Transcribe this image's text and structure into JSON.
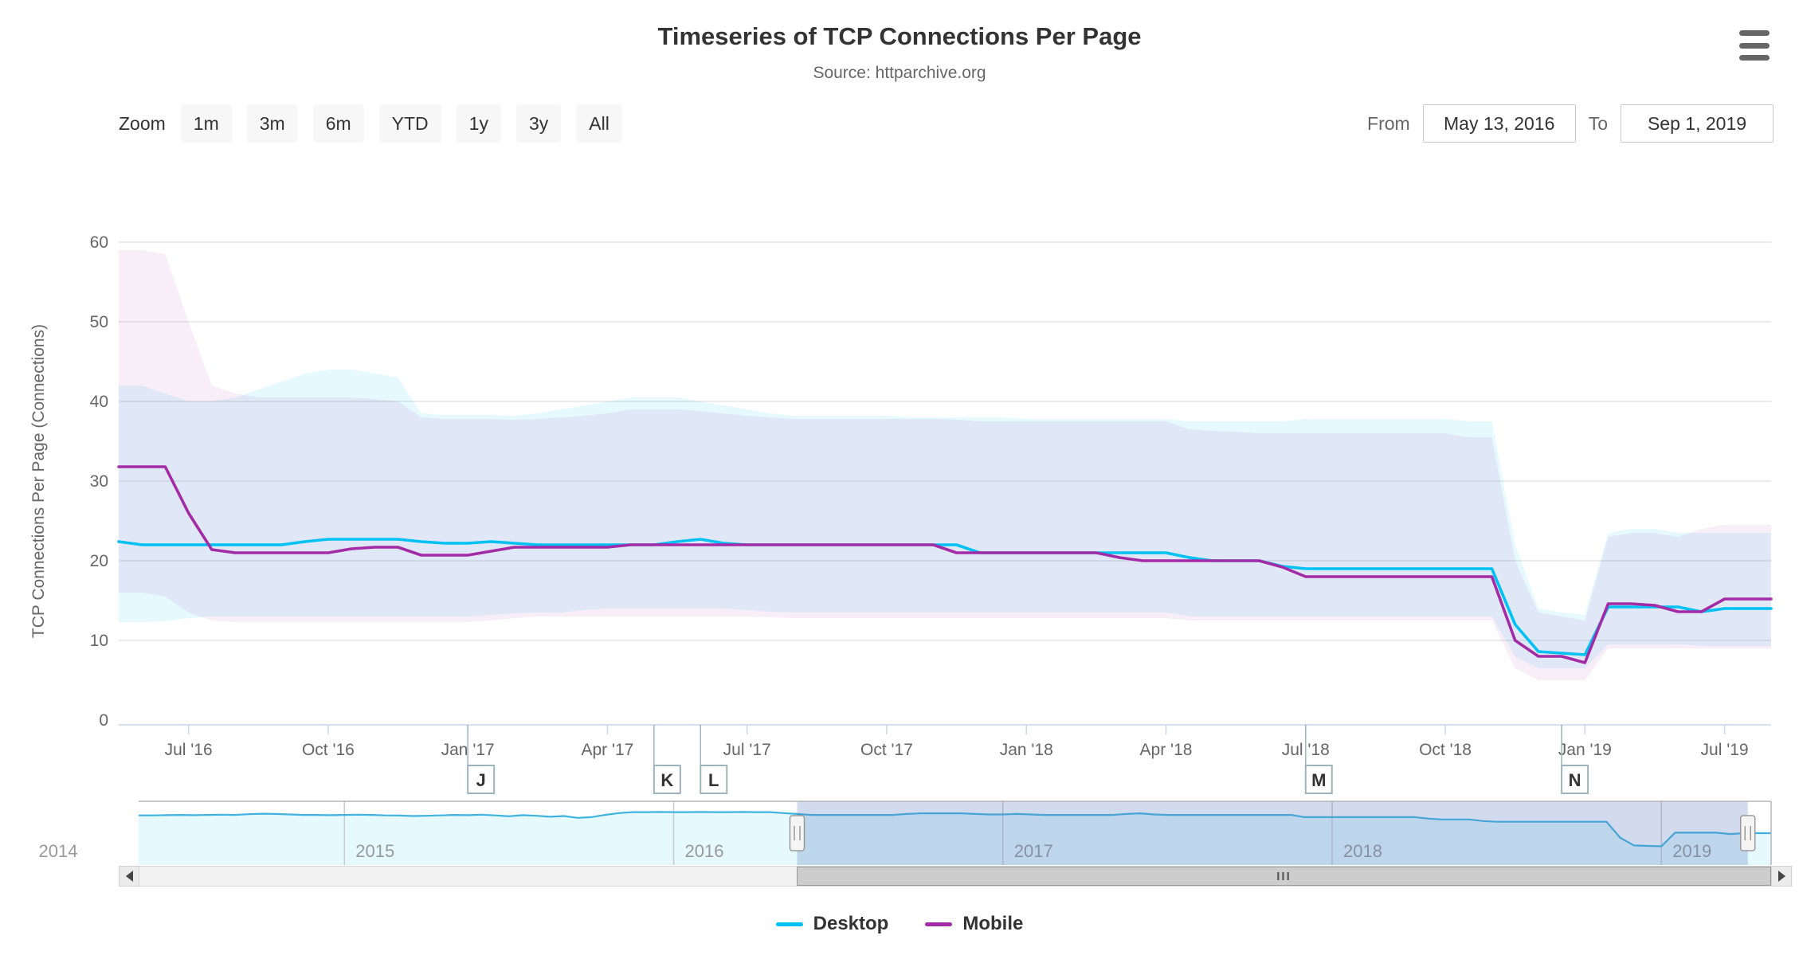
{
  "header": {
    "title": "Timeseries of TCP Connections Per Page",
    "subtitle": "Source: httparchive.org"
  },
  "controls": {
    "zoom_label": "Zoom",
    "buttons": [
      "1m",
      "3m",
      "6m",
      "YTD",
      "1y",
      "3y",
      "All"
    ],
    "from_label": "From",
    "from_value": "May 13, 2016",
    "to_label": "To",
    "to_value": "Sep 1, 2019"
  },
  "legend": [
    {
      "label": "Desktop",
      "color": "#00c1f4"
    },
    {
      "label": "Mobile",
      "color": "#a42ba6"
    }
  ],
  "scrollbar": {
    "grip": "III"
  },
  "chart_data": {
    "type": "line",
    "title": "Timeseries of TCP Connections Per Page",
    "subtitle": "Source: httparchive.org",
    "ylabel": "TCP Connections Per Page (Connections)",
    "ylim": [
      0,
      60
    ],
    "yticks": [
      0,
      10,
      20,
      30,
      40,
      50,
      60
    ],
    "x_start": "2016-05-15",
    "x_end": "2019-09-01",
    "x_note": "72 crawl points: semi-monthly May 2016 - Dec 2018 (indices 0-62), monthly Jan-Sep 2019 (63-71); ordinal spacing",
    "x_tick_labels": [
      {
        "index": 3,
        "label": "Jul '16"
      },
      {
        "index": 9,
        "label": "Oct '16"
      },
      {
        "index": 15,
        "label": "Jan '17"
      },
      {
        "index": 21,
        "label": "Apr '17"
      },
      {
        "index": 27,
        "label": "Jul '17"
      },
      {
        "index": 33,
        "label": "Oct '17"
      },
      {
        "index": 39,
        "label": "Jan '18"
      },
      {
        "index": 45,
        "label": "Apr '18"
      },
      {
        "index": 51,
        "label": "Jul '18"
      },
      {
        "index": 57,
        "label": "Oct '18"
      },
      {
        "index": 63,
        "label": "Jan '19"
      },
      {
        "index": 69,
        "label": "Jul '19"
      }
    ],
    "series": [
      {
        "name": "Desktop",
        "color": "#00c1f4",
        "values": [
          22.4,
          22,
          22,
          22,
          22,
          22,
          22,
          22,
          22.4,
          22.7,
          22.7,
          22.7,
          22.7,
          22.4,
          22.2,
          22.2,
          22.4,
          22.2,
          22,
          22,
          22,
          22,
          22,
          22,
          22.4,
          22.7,
          22.2,
          22,
          22,
          22,
          22,
          22,
          22,
          22,
          22,
          22,
          22,
          21,
          21,
          21,
          21,
          21,
          21,
          21,
          21,
          21,
          20.4,
          20,
          20,
          20,
          19.3,
          19,
          19,
          19,
          19,
          19,
          19,
          19,
          19,
          19,
          12,
          8.6,
          8.4,
          8.2,
          14.2,
          14.2,
          14.2,
          14.2,
          13.6,
          14,
          14,
          14
        ]
      },
      {
        "name": "Mobile",
        "color": "#a42ba6",
        "values": [
          31.8,
          31.8,
          31.8,
          26,
          21.4,
          21,
          21,
          21,
          21,
          21,
          21.5,
          21.7,
          21.7,
          20.7,
          20.7,
          20.7,
          21.2,
          21.7,
          21.7,
          21.7,
          21.7,
          21.7,
          22,
          22,
          22,
          22,
          22,
          22,
          22,
          22,
          22,
          22,
          22,
          22,
          22,
          22,
          21,
          21,
          21,
          21,
          21,
          21,
          21,
          20.4,
          20,
          20,
          20,
          20,
          20,
          20,
          19.2,
          18,
          18,
          18,
          18,
          18,
          18,
          18,
          18,
          18,
          10,
          8,
          8,
          7.2,
          14.6,
          14.6,
          14.4,
          13.6,
          13.6,
          15.2,
          15.2,
          15.2
        ]
      }
    ],
    "ranges": [
      {
        "name": "Desktop range",
        "color": "rgba(0,193,244,0.10)",
        "low": [
          12.3,
          12.3,
          12.4,
          12.8,
          13,
          13,
          13,
          13,
          13,
          13,
          13,
          13,
          13,
          13,
          13,
          13,
          13.2,
          13.4,
          13.5,
          13.5,
          13.8,
          14,
          14,
          14,
          14,
          14,
          14,
          13.8,
          13.6,
          13.5,
          13.5,
          13.5,
          13.5,
          13.5,
          13.5,
          13.5,
          13.5,
          13.5,
          13.5,
          13.5,
          13.5,
          13.5,
          13.5,
          13.5,
          13.5,
          13.5,
          13,
          13,
          13,
          13,
          13,
          13,
          13,
          13,
          13,
          13,
          13,
          13,
          13,
          13,
          8,
          6.5,
          6.5,
          6.5,
          9.5,
          9.5,
          9.5,
          9.5,
          9.3,
          9.3,
          9.3,
          9.3
        ],
        "high": [
          42,
          42,
          41,
          40,
          40,
          40.5,
          41.5,
          42.5,
          43.5,
          44,
          44,
          43.5,
          43,
          38.5,
          38.3,
          38.3,
          38.3,
          38.2,
          38.5,
          39,
          39.5,
          40,
          40.5,
          40.5,
          40.5,
          40,
          39.5,
          39,
          38.5,
          38.2,
          38.2,
          38.2,
          38.2,
          38.2,
          38,
          38,
          38,
          38,
          38,
          37.8,
          37.8,
          37.8,
          37.8,
          37.8,
          37.8,
          37.8,
          37.5,
          37.5,
          37.5,
          37.5,
          37.5,
          37.8,
          37.8,
          37.8,
          37.8,
          37.8,
          37.8,
          37.8,
          37.5,
          37.5,
          22,
          14,
          13.5,
          13.2,
          23.5,
          24,
          24,
          23.5,
          23.5,
          23.5,
          23.5,
          23.5
        ]
      },
      {
        "name": "Mobile range",
        "color": "rgba(164,43,166,0.08)",
        "low": [
          16,
          16,
          15.5,
          13.5,
          12.5,
          12.3,
          12.3,
          12.3,
          12.3,
          12.3,
          12.3,
          12.3,
          12.3,
          12.3,
          12.3,
          12.3,
          12.5,
          12.8,
          13,
          13,
          13,
          13,
          13,
          13,
          13,
          13,
          13,
          13,
          12.9,
          12.8,
          12.8,
          12.8,
          12.8,
          12.8,
          12.8,
          12.8,
          12.8,
          12.8,
          12.8,
          12.8,
          12.8,
          12.8,
          12.8,
          12.8,
          12.8,
          12.8,
          12.5,
          12.5,
          12.5,
          12.5,
          12.5,
          12.5,
          12.5,
          12.5,
          12.5,
          12.5,
          12.5,
          12.5,
          12.5,
          12.5,
          6.5,
          5,
          5,
          5,
          9,
          9,
          9,
          9,
          9,
          9,
          9,
          9
        ],
        "high": [
          59,
          59,
          58.5,
          50,
          42,
          41,
          40.5,
          40.5,
          40.5,
          40.5,
          40.5,
          40.3,
          40,
          38,
          37.8,
          37.8,
          37.8,
          37.7,
          37.8,
          38,
          38.2,
          38.5,
          39,
          39,
          39,
          38.8,
          38.5,
          38.2,
          38,
          37.8,
          37.8,
          37.8,
          37.8,
          37.8,
          37.8,
          37.8,
          37.7,
          37.5,
          37.5,
          37.5,
          37.5,
          37.5,
          37.5,
          37.5,
          37.5,
          37.5,
          36.5,
          36.3,
          36.2,
          36,
          36,
          36,
          36,
          36,
          36,
          36,
          36,
          36,
          35.5,
          35.5,
          20,
          13.5,
          13,
          12.5,
          23,
          23.5,
          23.5,
          23,
          24,
          24.5,
          24.5,
          24.5
        ]
      }
    ],
    "flags": [
      {
        "label": "J",
        "index": 15
      },
      {
        "label": "K",
        "index": 23
      },
      {
        "label": "L",
        "index": 25
      },
      {
        "label": "M",
        "index": 51
      },
      {
        "label": "N",
        "index": 62
      }
    ],
    "navigator": {
      "note": "navigator spans May 2014 - Sep 2019; pre_values are semi-monthly desktop values May 2014 - May 2016, followed by the Desktop series above",
      "pre_values": [
        21.8,
        21.8,
        21.9,
        22,
        21.9,
        22,
        22.1,
        22,
        22.3,
        22.5,
        22.4,
        22.2,
        22,
        22,
        21.9,
        22,
        22.1,
        22,
        21.8,
        21.7,
        21.5,
        21.6,
        21.8,
        22,
        21.9,
        22.1,
        21.8,
        21.4,
        21.9,
        21.6,
        21.2,
        21.5,
        20.7,
        21,
        22,
        22.8,
        23.2,
        23.2,
        23.3,
        23.2,
        23.2,
        23.3,
        23.2,
        23.2,
        23.3,
        23.2,
        23.2,
        22.8
      ],
      "year_labels": [
        {
          "label": "2014",
          "tick_index": -9
        },
        {
          "label": "2015",
          "tick_index": 15
        },
        {
          "label": "2016",
          "tick_index": 39
        },
        {
          "label": "2017",
          "tick_index": 63
        },
        {
          "label": "2018",
          "tick_index": 87
        },
        {
          "label": "2019",
          "tick_index": 111
        }
      ],
      "selection_start_index": 48,
      "selection_end_index": 117.3,
      "line_color": "#3fb3e0",
      "fill_color": "rgba(0,193,244,0.10)",
      "mask_color": "rgba(91,125,190,0.28)"
    }
  }
}
